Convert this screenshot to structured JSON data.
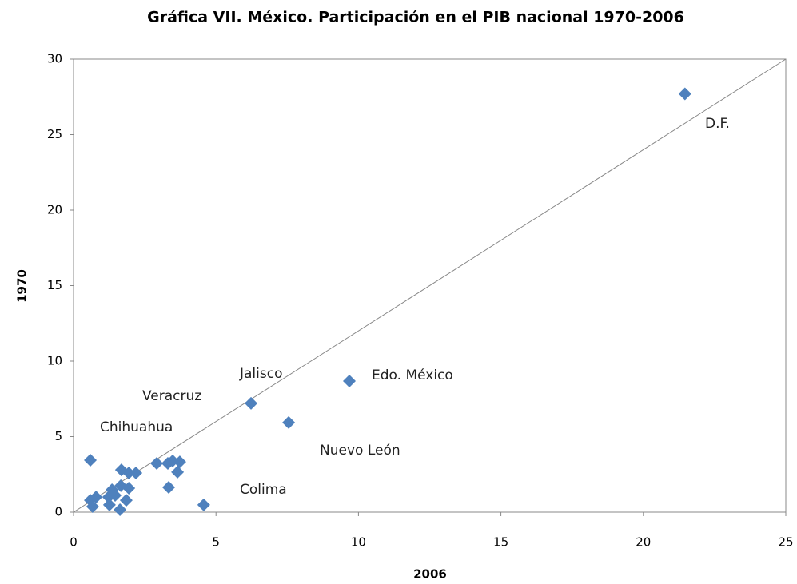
{
  "chart_data": {
    "type": "scatter",
    "title": "Gráfica VII. México. Participación en el PIB nacional 1970-2006",
    "x_label": "2006",
    "y_label": "1970",
    "color": "#4f81bd",
    "x": [
      21.46,
      9.68,
      6.23,
      7.55,
      4.57,
      0.59,
      1.68,
      1.94,
      2.19,
      2.92,
      3.31,
      3.48,
      3.73,
      3.65,
      3.34,
      1.94,
      1.66,
      1.35,
      1.46,
      1.23,
      0.79,
      0.59,
      0.67,
      1.26,
      1.85,
      1.63
    ],
    "y": [
      27.7,
      8.68,
      7.2,
      5.93,
      0.48,
      3.44,
      2.8,
      2.59,
      2.59,
      3.23,
      3.23,
      3.39,
      3.33,
      2.65,
      1.64,
      1.59,
      1.75,
      1.48,
      1.11,
      1.0,
      1.0,
      0.79,
      0.37,
      0.48,
      0.79,
      0.16
    ],
    "annotations": [
      "D.F.",
      "Edo. México",
      "Jalisco",
      "Veracruz",
      "Chihuahua",
      "Nuevo León",
      "Colima"
    ],
    "reference_line": {
      "x": [
        0,
        25
      ],
      "y": [
        0,
        30
      ]
    },
    "xlim": [
      0,
      25
    ],
    "ylim": [
      0,
      30
    ],
    "xticks": [
      0,
      5,
      10,
      15,
      20,
      25
    ],
    "yticks": [
      0,
      5,
      10,
      15,
      20,
      25,
      30
    ],
    "grid": false
  }
}
